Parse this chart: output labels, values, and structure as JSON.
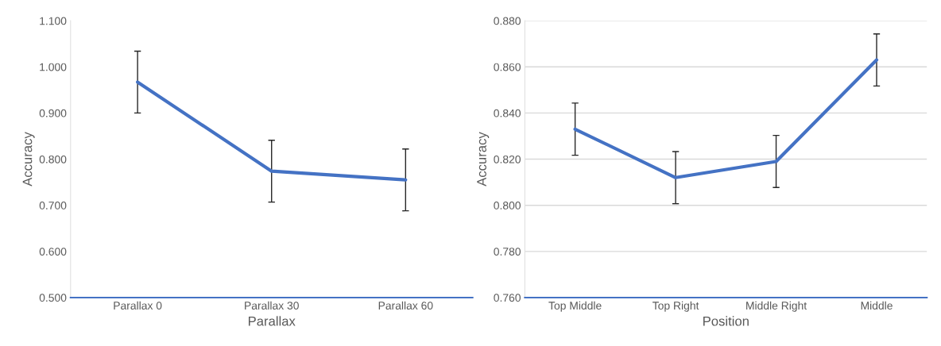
{
  "chart_data": [
    {
      "type": "line",
      "xlabel": "Parallax",
      "ylabel": "Accuracy",
      "categories": [
        "Parallax 0",
        "Parallax 30",
        "Parallax 60"
      ],
      "series": [
        {
          "color": "#4472c4",
          "values": [
            0.967,
            0.774,
            0.755
          ],
          "errors": [
            0.067,
            0.067,
            0.067
          ]
        }
      ],
      "ylim": [
        0.5,
        1.1
      ],
      "yticks": [
        {
          "value": 0.5,
          "label": "0.500"
        },
        {
          "value": 0.6,
          "label": "0.600"
        },
        {
          "value": 0.7,
          "label": "0.700"
        },
        {
          "value": 0.8,
          "label": "0.800"
        },
        {
          "value": 0.9,
          "label": "0.900"
        },
        {
          "value": 1.0,
          "label": "1.000"
        },
        {
          "value": 1.1,
          "label": "1.100"
        }
      ],
      "grid": false,
      "marker": "none",
      "line_style": "solid"
    },
    {
      "type": "line",
      "xlabel": "Position",
      "ylabel": "Accuracy",
      "categories": [
        "Top Middle",
        "Top Right",
        "Middle Right",
        "Middle"
      ],
      "series": [
        {
          "color": "#4472c4",
          "values": [
            0.833,
            0.812,
            0.819,
            0.863
          ],
          "errors": [
            0.0113,
            0.0113,
            0.0113,
            0.0113
          ]
        }
      ],
      "ylim": [
        0.76,
        0.88
      ],
      "yticks": [
        {
          "value": 0.76,
          "label": "0.760"
        },
        {
          "value": 0.78,
          "label": "0.780"
        },
        {
          "value": 0.8,
          "label": "0.800"
        },
        {
          "value": 0.82,
          "label": "0.820"
        },
        {
          "value": 0.84,
          "label": "0.840"
        },
        {
          "value": 0.86,
          "label": "0.860"
        },
        {
          "value": 0.88,
          "label": "0.880"
        }
      ],
      "grid": "y",
      "marker": "none",
      "line_style": "solid"
    }
  ]
}
